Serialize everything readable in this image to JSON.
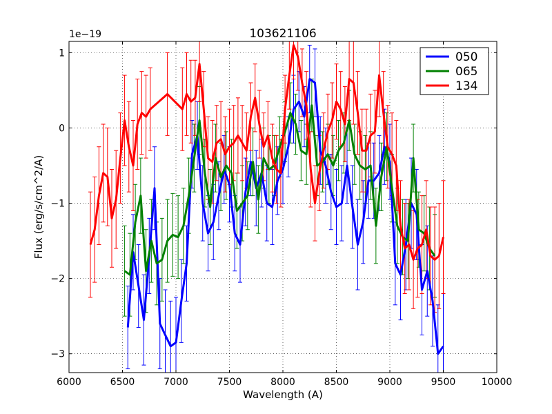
{
  "chart_data": {
    "type": "line",
    "title": "103621106",
    "xlabel": "Wavelength (A)",
    "ylabel": "Flux (erg/s/cm^2/A)",
    "y_scale_label": "1e−19",
    "xlim": [
      6000,
      10000
    ],
    "ylim": [
      -3.25,
      1.15
    ],
    "xticks": [
      6000,
      6500,
      7000,
      7500,
      8000,
      8500,
      9000,
      9500,
      10000
    ],
    "xtick_labels": [
      "6000",
      "6500",
      "7000",
      "7500",
      "8000",
      "8500",
      "9000",
      "9500",
      "10000"
    ],
    "yticks": [
      -3,
      -2,
      -1,
      0,
      1
    ],
    "ytick_labels": [
      "−3",
      "−2",
      "−1",
      "0",
      "1"
    ],
    "grid": true,
    "legend_position": "top-right",
    "series": [
      {
        "name": "050",
        "color": "#0000ff",
        "x": [
          6550,
          6600,
          6650,
          6700,
          6750,
          6800,
          6850,
          6900,
          6950,
          7000,
          7050,
          7100,
          7150,
          7200,
          7250,
          7300,
          7350,
          7400,
          7450,
          7500,
          7550,
          7600,
          7650,
          7700,
          7750,
          7800,
          7850,
          7900,
          7950,
          8000,
          8050,
          8100,
          8150,
          8200,
          8250,
          8300,
          8350,
          8400,
          8450,
          8500,
          8550,
          8600,
          8650,
          8700,
          8750,
          8800,
          8850,
          8900,
          8950,
          9000,
          9050,
          9100,
          9150,
          9200,
          9250,
          9300,
          9350,
          9400,
          9450,
          9500
        ],
        "y": [
          -2.65,
          -1.65,
          -2.1,
          -2.55,
          -1.7,
          -0.8,
          -2.6,
          -2.75,
          -2.9,
          -2.85,
          -2.3,
          -1.8,
          -0.35,
          -0.1,
          -1.0,
          -1.4,
          -1.25,
          -0.9,
          -0.55,
          -0.75,
          -1.4,
          -1.55,
          -0.85,
          -0.45,
          -0.8,
          -0.6,
          -1.0,
          -1.05,
          -0.7,
          -0.55,
          -0.25,
          0.25,
          0.35,
          0.15,
          0.65,
          0.6,
          -0.3,
          -0.5,
          -0.85,
          -1.05,
          -1.0,
          -0.5,
          -1.05,
          -1.55,
          -1.25,
          -0.7,
          -0.7,
          -0.6,
          -0.25,
          -0.45,
          -1.8,
          -1.95,
          -1.55,
          -1.0,
          -1.15,
          -2.15,
          -1.9,
          -2.3,
          -3.0,
          -2.9
        ],
        "err": [
          0.55,
          0.5,
          0.55,
          0.6,
          0.5,
          0.55,
          0.6,
          0.6,
          0.6,
          0.6,
          0.55,
          0.5,
          0.45,
          0.45,
          0.5,
          0.5,
          0.5,
          0.45,
          0.45,
          0.5,
          0.5,
          0.5,
          0.45,
          0.45,
          0.5,
          0.45,
          0.5,
          0.5,
          0.45,
          0.45,
          0.4,
          0.45,
          0.4,
          0.4,
          0.45,
          0.45,
          0.45,
          0.5,
          0.5,
          0.5,
          0.5,
          0.5,
          0.55,
          0.6,
          0.55,
          0.5,
          0.5,
          0.5,
          0.5,
          0.5,
          0.55,
          0.6,
          0.6,
          0.6,
          0.6,
          0.6,
          0.6,
          0.6,
          0.65,
          0.7
        ]
      },
      {
        "name": "065",
        "color": "#008000",
        "x": [
          6520,
          6570,
          6620,
          6670,
          6720,
          6770,
          6820,
          6870,
          6920,
          6970,
          7020,
          7070,
          7120,
          7170,
          7220,
          7270,
          7320,
          7370,
          7420,
          7470,
          7520,
          7570,
          7620,
          7670,
          7720,
          7770,
          7820,
          7870,
          7920,
          7970,
          8020,
          8070,
          8120,
          8170,
          8220,
          8270,
          8320,
          8370,
          8420,
          8470,
          8520,
          8570,
          8620,
          8670,
          8720,
          8770,
          8820,
          8870,
          8920,
          8970,
          9020,
          9070,
          9120,
          9170,
          9220,
          9270,
          9320,
          9370,
          9420
        ],
        "y": [
          -1.9,
          -1.95,
          -1.25,
          -0.9,
          -1.9,
          -1.5,
          -1.8,
          -1.75,
          -1.5,
          -1.42,
          -1.45,
          -1.3,
          -0.9,
          -0.4,
          0.1,
          -0.6,
          -1.05,
          -0.4,
          -0.65,
          -0.5,
          -0.6,
          -1.1,
          -1.0,
          -0.9,
          -0.45,
          -0.95,
          -0.4,
          -0.55,
          -0.5,
          -0.25,
          -0.05,
          0.2,
          0.05,
          -0.3,
          -0.35,
          0.3,
          -0.5,
          -0.45,
          -0.35,
          -0.5,
          -0.3,
          -0.2,
          0.1,
          -0.35,
          -0.5,
          -0.55,
          -0.5,
          -1.3,
          -0.65,
          -0.25,
          -0.8,
          -1.3,
          -1.45,
          -1.5,
          -0.4,
          -1.35,
          -1.4,
          -1.6,
          -1.7
        ],
        "err": [
          0.6,
          0.55,
          0.5,
          0.5,
          0.55,
          0.55,
          0.55,
          0.55,
          0.55,
          0.55,
          0.55,
          0.5,
          0.5,
          0.45,
          0.45,
          0.45,
          0.5,
          0.45,
          0.45,
          0.45,
          0.45,
          0.5,
          0.5,
          0.45,
          0.45,
          0.45,
          0.4,
          0.45,
          0.4,
          0.4,
          0.4,
          0.4,
          0.4,
          0.4,
          0.4,
          0.35,
          0.4,
          0.4,
          0.4,
          0.4,
          0.4,
          0.4,
          0.4,
          0.4,
          0.45,
          0.45,
          0.45,
          0.5,
          0.45,
          0.45,
          0.45,
          0.5,
          0.5,
          0.5,
          0.45,
          0.5,
          0.5,
          0.55,
          0.55
        ]
      },
      {
        "name": "134",
        "color": "#ff0000",
        "x": [
          6200,
          6240,
          6280,
          6320,
          6360,
          6400,
          6440,
          6480,
          6520,
          6560,
          6600,
          6640,
          6680,
          6720,
          6760,
          6920,
          7060,
          7100,
          7140,
          7180,
          7220,
          7260,
          7300,
          7340,
          7380,
          7420,
          7460,
          7500,
          7540,
          7580,
          7620,
          7660,
          7700,
          7740,
          7780,
          7820,
          7860,
          7900,
          7940,
          7980,
          8020,
          8060,
          8100,
          8140,
          8180,
          8220,
          8260,
          8300,
          8340,
          8380,
          8420,
          8460,
          8500,
          8540,
          8580,
          8620,
          8660,
          8700,
          8740,
          8780,
          8820,
          8860,
          8900,
          8940,
          8980,
          9020,
          9060,
          9100,
          9140,
          9180,
          9220,
          9260,
          9300,
          9340,
          9380,
          9420,
          9460,
          9500
        ],
        "y": [
          -1.55,
          -1.35,
          -0.9,
          -0.6,
          -0.65,
          -1.2,
          -0.95,
          -0.4,
          0.1,
          -0.25,
          -0.5,
          0.05,
          0.2,
          0.15,
          0.25,
          0.45,
          0.25,
          0.45,
          0.35,
          0.4,
          0.85,
          0.25,
          -0.4,
          -0.45,
          -0.2,
          -0.15,
          -0.35,
          -0.25,
          -0.2,
          -0.1,
          -0.2,
          -0.3,
          0.15,
          0.4,
          0.05,
          -0.25,
          -0.1,
          -0.4,
          -0.55,
          -0.6,
          0.25,
          0.7,
          1.1,
          0.95,
          0.6,
          0.3,
          -0.55,
          -1.0,
          -0.6,
          -0.3,
          -0.05,
          0.1,
          0.35,
          0.25,
          0.05,
          0.65,
          0.6,
          0.2,
          -0.3,
          -0.3,
          -0.1,
          -0.05,
          0.7,
          0.2,
          -0.25,
          -0.35,
          -0.5,
          -1.3,
          -1.6,
          -1.55,
          -1.75,
          -1.6,
          -1.55,
          -1.35,
          -1.7,
          -1.75,
          -1.7,
          -1.45
        ],
        "err": [
          0.7,
          0.7,
          0.65,
          0.65,
          0.65,
          0.65,
          0.65,
          0.6,
          0.6,
          0.6,
          0.6,
          0.6,
          0.55,
          0.55,
          0.55,
          0.55,
          0.55,
          0.55,
          0.55,
          0.5,
          0.5,
          0.5,
          0.55,
          0.55,
          0.5,
          0.5,
          0.5,
          0.5,
          0.5,
          0.5,
          0.5,
          0.5,
          0.45,
          0.45,
          0.45,
          0.45,
          0.45,
          0.45,
          0.45,
          0.45,
          0.45,
          0.45,
          0.45,
          0.45,
          0.45,
          0.45,
          0.5,
          0.5,
          0.5,
          0.5,
          0.5,
          0.5,
          0.5,
          0.5,
          0.5,
          0.55,
          0.55,
          0.55,
          0.55,
          0.55,
          0.55,
          0.55,
          0.55,
          0.55,
          0.55,
          0.55,
          0.6,
          0.6,
          0.6,
          0.6,
          0.65,
          0.65,
          0.65,
          0.65,
          0.65,
          0.7,
          0.7,
          0.75
        ]
      }
    ]
  }
}
